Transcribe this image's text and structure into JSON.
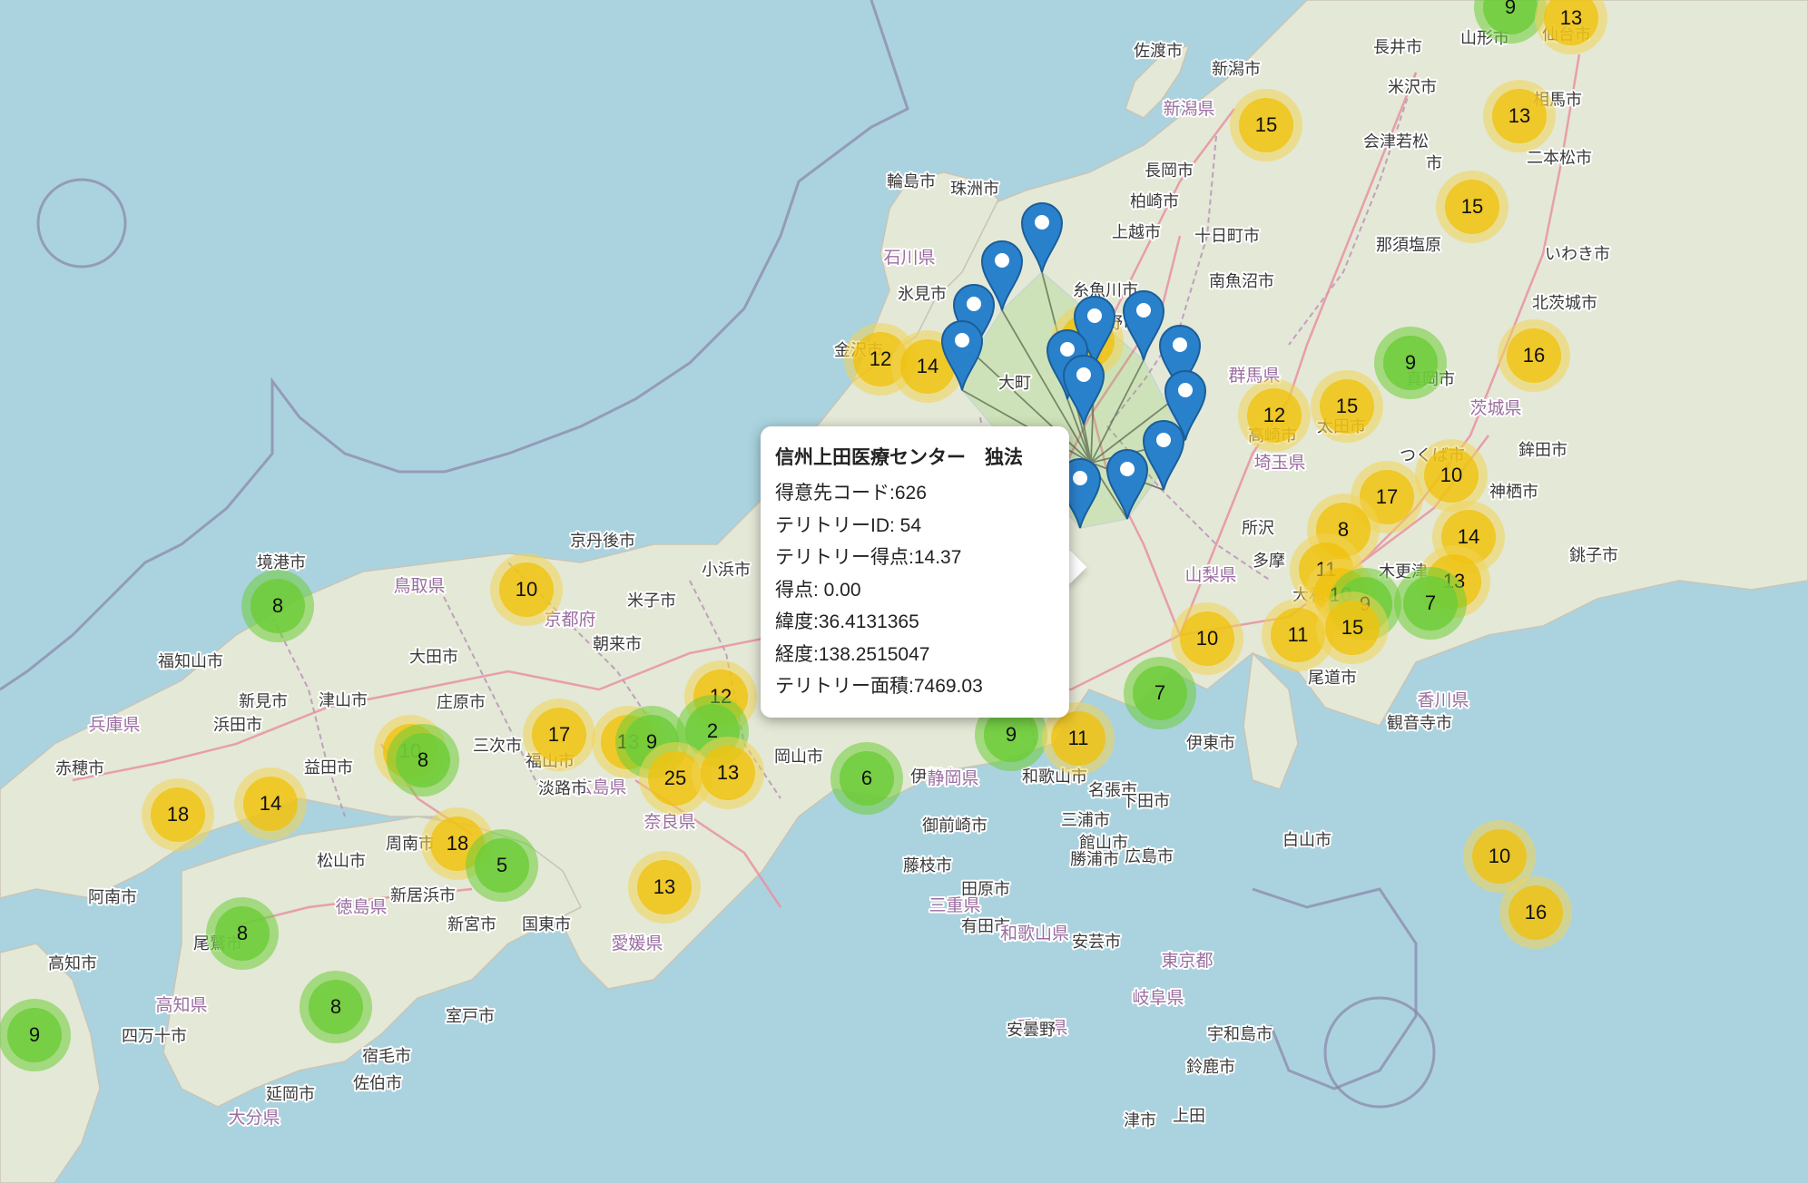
{
  "map": {
    "place_labels": [
      "佐渡市",
      "新潟市",
      "長井市",
      "山形市",
      "仙台市",
      "米沢市",
      "相馬市",
      "新潟県",
      "会津若松",
      "市",
      "二本松市",
      "長岡市",
      "柏崎市",
      "輪島市",
      "珠洲市",
      "上越市",
      "十日町市",
      "那須塩原",
      "いわき市",
      "石川県",
      "南魚沼市",
      "北茨城市",
      "氷見市",
      "糸魚川市",
      "長野市",
      "金沢市",
      "大町",
      "群馬県",
      "真岡市",
      "高崎市",
      "茨城県",
      "太田市",
      "鉾田市",
      "埼玉県",
      "つくば市",
      "神栖市",
      "所沢",
      "銚子市",
      "多摩",
      "山梨県",
      "大和",
      "木更津",
      "京丹後市",
      "小浜市",
      "境港市",
      "鳥取県",
      "米子市",
      "京都府",
      "朝来市",
      "福知山市",
      "大田市",
      "津山市",
      "新見市",
      "庄原市",
      "兵庫県",
      "浜田市",
      "三次市",
      "赤穂市",
      "益田市",
      "福山市",
      "広島県",
      "岡山市",
      "淡路市",
      "伊賀市",
      "名張市",
      "和歌山市",
      "奈良県",
      "田原市",
      "御前崎市",
      "藤枝市",
      "三重県",
      "静岡県",
      "伊東市",
      "下田市",
      "三浦市",
      "館山市",
      "勝浦市",
      "広島市",
      "尾道市",
      "香川県",
      "観音寺市",
      "新居浜市",
      "周南市",
      "松山市",
      "徳島県",
      "阿南市",
      "有田市",
      "和歌山県",
      "尾鷲市",
      "新宮市",
      "国東市",
      "愛媛県",
      "安芸市",
      "宇和島市",
      "高知市",
      "高知県",
      "室戸市",
      "四万十市",
      "宿毛市",
      "佐伯市",
      "延岡市",
      "大分県",
      "東京都",
      "岐阜県",
      "愛知県",
      "津市",
      "鈴鹿市",
      "上田",
      "安曇野",
      "白山市"
    ],
    "clusters": [
      {
        "count": "9",
        "color": "green"
      },
      {
        "count": "13",
        "color": "yellow"
      },
      {
        "count": "15",
        "color": "yellow"
      },
      {
        "count": "13",
        "color": "yellow"
      },
      {
        "count": "15",
        "color": "yellow"
      },
      {
        "count": "12",
        "color": "yellow"
      },
      {
        "count": "14",
        "color": "yellow"
      },
      {
        "count": "12",
        "color": "yellow"
      },
      {
        "count": "9",
        "color": "green"
      },
      {
        "count": "16",
        "color": "yellow"
      },
      {
        "count": "12",
        "color": "yellow"
      },
      {
        "count": "15",
        "color": "yellow"
      },
      {
        "count": "10",
        "color": "yellow"
      },
      {
        "count": "17",
        "color": "yellow"
      },
      {
        "count": "8",
        "color": "yellow"
      },
      {
        "count": "14",
        "color": "yellow"
      },
      {
        "count": "11",
        "color": "yellow"
      },
      {
        "count": "10",
        "color": "yellow"
      },
      {
        "count": "9",
        "color": "green"
      },
      {
        "count": "13",
        "color": "yellow"
      },
      {
        "count": "7",
        "color": "green"
      },
      {
        "count": "10",
        "color": "yellow"
      },
      {
        "count": "11",
        "color": "yellow"
      },
      {
        "count": "15",
        "color": "yellow"
      },
      {
        "count": "7",
        "color": "green"
      },
      {
        "count": "9",
        "color": "green"
      },
      {
        "count": "11",
        "color": "yellow"
      },
      {
        "count": "6",
        "color": "green"
      },
      {
        "count": "8",
        "color": "green"
      },
      {
        "count": "10",
        "color": "yellow"
      },
      {
        "count": "12",
        "color": "yellow"
      },
      {
        "count": "17",
        "color": "yellow"
      },
      {
        "count": "13",
        "color": "yellow"
      },
      {
        "count": "9",
        "color": "green"
      },
      {
        "count": "2",
        "color": "green"
      },
      {
        "count": "25",
        "color": "yellow"
      },
      {
        "count": "13",
        "color": "yellow"
      },
      {
        "count": "10",
        "color": "yellow"
      },
      {
        "count": "8",
        "color": "green"
      },
      {
        "count": "18",
        "color": "yellow"
      },
      {
        "count": "14",
        "color": "yellow"
      },
      {
        "count": "18",
        "color": "yellow"
      },
      {
        "count": "5",
        "color": "green"
      },
      {
        "count": "13",
        "color": "yellow"
      },
      {
        "count": "8",
        "color": "green"
      },
      {
        "count": "8",
        "color": "green"
      },
      {
        "count": "9",
        "color": "green"
      },
      {
        "count": "16",
        "color": "yellow"
      },
      {
        "count": "10",
        "color": "yellow"
      }
    ]
  },
  "popup": {
    "title": "信州上田医療センター　独法",
    "rows": [
      "得意先コード:626",
      "テリトリーID: 54",
      "テリトリー得点:14.37",
      "得点: 0.00",
      "緯度:36.4131365",
      "経度:138.2515047",
      "テリトリー面積:7469.03"
    ]
  },
  "colors": {
    "water": "#aad3df",
    "land": "#f2efe9",
    "cluster_yellow": "#f0c20c",
    "cluster_green": "#6ecc39",
    "pin": "#2a81cb"
  }
}
